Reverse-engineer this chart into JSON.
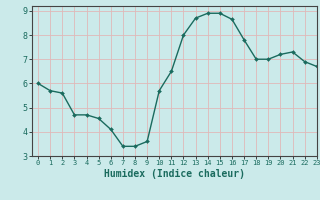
{
  "x": [
    0,
    1,
    2,
    3,
    4,
    5,
    6,
    7,
    8,
    9,
    10,
    11,
    12,
    13,
    14,
    15,
    16,
    17,
    18,
    19,
    20,
    21,
    22,
    23
  ],
  "y": [
    6.0,
    5.7,
    5.6,
    4.7,
    4.7,
    4.55,
    4.1,
    3.4,
    3.4,
    3.6,
    5.7,
    6.5,
    8.0,
    8.7,
    8.9,
    8.9,
    8.65,
    7.8,
    7.0,
    7.0,
    7.2,
    7.3,
    6.9,
    6.7
  ],
  "xlabel": "Humidex (Indice chaleur)",
  "xlim": [
    -0.5,
    23
  ],
  "ylim": [
    3,
    9.2
  ],
  "yticks": [
    3,
    4,
    5,
    6,
    7,
    8,
    9
  ],
  "xticks": [
    0,
    1,
    2,
    3,
    4,
    5,
    6,
    7,
    8,
    9,
    10,
    11,
    12,
    13,
    14,
    15,
    16,
    17,
    18,
    19,
    20,
    21,
    22,
    23
  ],
  "line_color": "#1a6b5e",
  "marker_color": "#1a6b5e",
  "bg_color": "#cbeaea",
  "grid_color": "#e0b8b8",
  "axis_label_color": "#1a6b5e",
  "tick_color": "#1a6b5e",
  "xlabel_fontsize": 7,
  "ytick_fontsize": 6,
  "xtick_fontsize": 5
}
